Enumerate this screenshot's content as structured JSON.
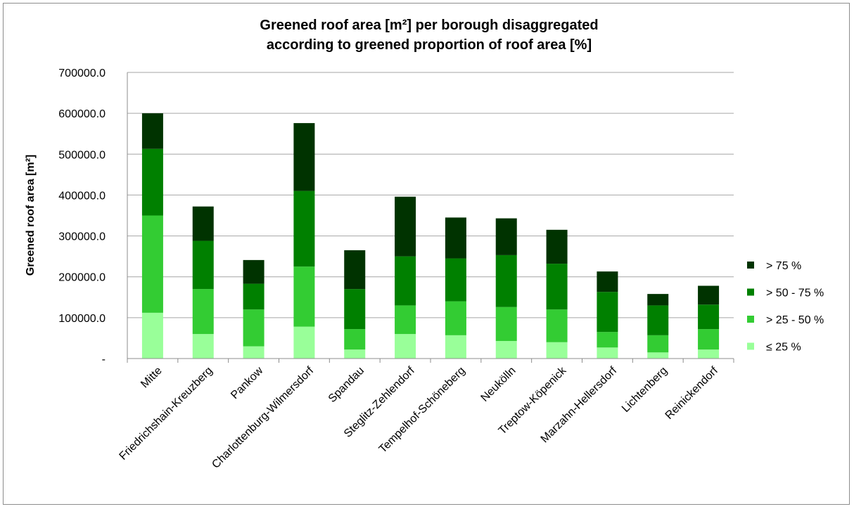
{
  "chart_data": {
    "type": "bar",
    "stacked": true,
    "title": "Greened roof area [m²] per borough disaggregated according to greened proportion of roof area [%]",
    "title_lines": [
      "Greened roof area [m²] per borough disaggregated",
      "according to greened proportion of roof area [%]"
    ],
    "xlabel": "",
    "ylabel": "Greened roof area [m²]",
    "ylim": [
      0,
      700000
    ],
    "y_ticks": [
      0,
      100000,
      200000,
      300000,
      400000,
      500000,
      600000,
      700000
    ],
    "y_tick_labels": [
      "-",
      "100000.0",
      "200000.0",
      "300000.0",
      "400000.0",
      "500000.0",
      "600000.0",
      "700000.0"
    ],
    "grid": true,
    "legend_position": "right",
    "categories": [
      "Mitte",
      "Friedrichshain-Kreuzberg",
      "Pankow",
      "Charlottenburg-Wilmersdorf",
      "Spandau",
      "Steglitz-Zehlendorf",
      "Tempelhof-Schöneberg",
      "Neukölln",
      "Treptow-Köpenick",
      "Marzahn-Hellersdorf",
      "Lichtenberg",
      "Reinickendorf"
    ],
    "series": [
      {
        "name": "≤ 25 %",
        "color": "#99ff99",
        "values": [
          112000,
          60000,
          30000,
          78000,
          22000,
          60000,
          57000,
          43000,
          40000,
          27000,
          15000,
          22000
        ]
      },
      {
        "name": "> 25 - 50 %",
        "color": "#33cc33",
        "values": [
          238000,
          110000,
          90000,
          147000,
          50000,
          70000,
          83000,
          83000,
          80000,
          38000,
          42000,
          50000
        ]
      },
      {
        "name": "> 50 - 75 %",
        "color": "#008000",
        "values": [
          163000,
          118000,
          63000,
          185000,
          98000,
          120000,
          105000,
          127000,
          112000,
          98000,
          73000,
          60000
        ]
      },
      {
        "name": "> 75 %",
        "color": "#003300",
        "values": [
          87000,
          84000,
          58000,
          166000,
          95000,
          146000,
          100000,
          90000,
          83000,
          50000,
          28000,
          46000
        ]
      }
    ]
  },
  "colors": {
    "gridline": "#a6a6a6",
    "axis": "#8c8c8c",
    "border": "#8c8c8c"
  }
}
